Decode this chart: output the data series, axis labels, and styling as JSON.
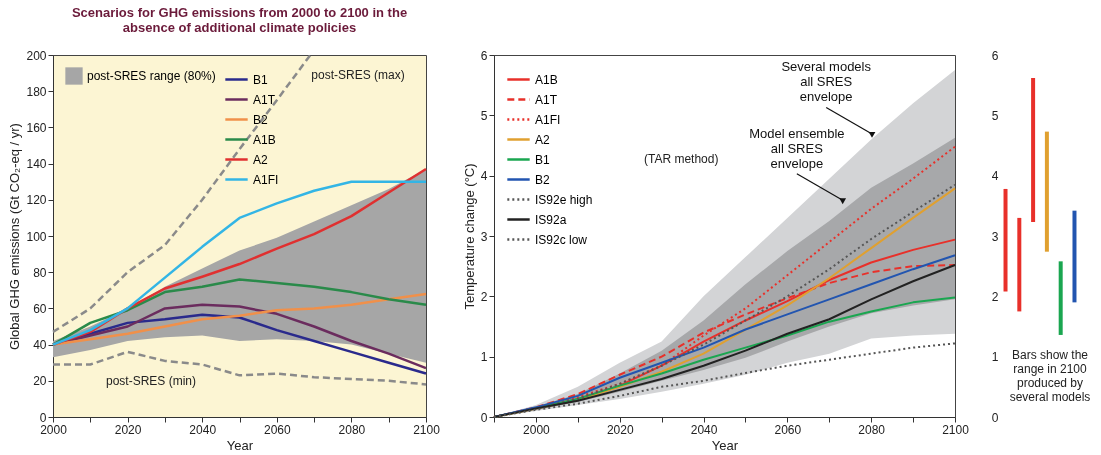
{
  "chart_data": [
    {
      "type": "line",
      "title": "Scenarios for GHG emissions from 2000 to 2100 in the absence of additional climate policies",
      "xlabel": "Year",
      "ylabel": "Global GHG emissions (Gt CO₂-eq / yr)",
      "legend": "top left",
      "x": [
        2000,
        2010,
        2020,
        2030,
        2040,
        2050,
        2060,
        2070,
        2080,
        2090,
        2100
      ],
      "xlim": [
        2000,
        2100
      ],
      "xticks": [
        2000,
        {
          "value": 2010,
          "label": null
        },
        2020,
        {
          "value": 2030,
          "label": null
        },
        2040,
        {
          "value": 2050,
          "label": null
        },
        2060,
        {
          "value": 2070,
          "label": null
        },
        2080,
        {
          "value": 2090,
          "label": null
        },
        2100
      ],
      "ylim": [
        0,
        200
      ],
      "yticks": [
        0,
        20,
        40,
        60,
        80,
        100,
        120,
        140,
        160,
        180,
        200
      ],
      "series": [
        {
          "name": "post-SRES range (80%)",
          "type": "area",
          "color": "#a6a6a6",
          "values": [
            null,
            null,
            null,
            null,
            null,
            null,
            null,
            null,
            null,
            null,
            null
          ],
          "lower": [
            33,
            37,
            42,
            44,
            45,
            42,
            43,
            42,
            40,
            35,
            30
          ],
          "upper": [
            42,
            50,
            60,
            72,
            82,
            92,
            99,
            108,
            117,
            126,
            137
          ]
        },
        {
          "name": "B1",
          "color": "#2a2a8c",
          "values": [
            40,
            46,
            52,
            54,
            56.5,
            55,
            48,
            42,
            36,
            30,
            24
          ]
        },
        {
          "name": "A1T",
          "color": "#6b2c5e",
          "values": [
            40,
            45,
            50,
            60,
            62,
            61,
            57,
            50,
            42,
            35,
            27
          ]
        },
        {
          "name": "B2",
          "color": "#f0904a",
          "values": [
            40,
            43,
            46,
            50,
            54,
            56,
            59,
            60,
            62,
            65,
            68
          ]
        },
        {
          "name": "A1B",
          "color": "#2a8a4a",
          "values": [
            40,
            52,
            59,
            69,
            72,
            76,
            74,
            72,
            69,
            65,
            62
          ]
        },
        {
          "name": "A2",
          "color": "#e03030",
          "values": [
            40,
            47,
            60,
            71,
            77.5,
            84.5,
            93,
            101,
            111,
            124,
            137
          ]
        },
        {
          "name": "A1FI",
          "color": "#33b5e5",
          "values": [
            40,
            48,
            60,
            77,
            94,
            110,
            118,
            125,
            130,
            130,
            130
          ]
        },
        {
          "color": "#8a8a8a",
          "line_style": "dashed",
          "x": [
            2000,
            2010,
            2020,
            2030,
            2040,
            2050,
            2060,
            2069
          ],
          "values": [
            47,
            60,
            80,
            95,
            120,
            148,
            175,
            200
          ]
        },
        {
          "color": "#8a8a8a",
          "line_style": "dashed",
          "values": [
            29,
            29,
            36,
            31,
            29,
            23,
            24,
            22,
            21,
            20,
            18
          ]
        }
      ],
      "annotations": [
        "post-SRES (max)",
        "post-SRES (min)"
      ]
    },
    {
      "type": "line",
      "xlabel": "Year",
      "ylabel": "Temperature change (°C)",
      "legend": "top left",
      "x": [
        1990,
        2000,
        2010,
        2020,
        2030,
        2040,
        2050,
        2060,
        2070,
        2080,
        2090,
        2100
      ],
      "xlim": [
        1990,
        2100
      ],
      "xticks": [
        {
          "value": 1990,
          "label": null
        },
        2000,
        {
          "value": 2010,
          "label": null
        },
        2020,
        {
          "value": 2030,
          "label": null
        },
        2040,
        {
          "value": 2050,
          "label": null
        },
        2060,
        {
          "value": 2070,
          "label": null
        },
        2080,
        {
          "value": 2090,
          "label": null
        },
        2100
      ],
      "ylim": [
        0,
        6
      ],
      "yticks": [
        0,
        1,
        2,
        3,
        4,
        5,
        6
      ],
      "series": [
        {
          "type": "area",
          "color": "#d3d4d6",
          "values": [
            null,
            null,
            null,
            null,
            null,
            null,
            null,
            null,
            null,
            null,
            null,
            null
          ],
          "lower": [
            0,
            0.1,
            0.2,
            0.3,
            0.42,
            0.55,
            0.7,
            0.9,
            1.05,
            1.3,
            1.35,
            1.38
          ],
          "upper": [
            0,
            0.2,
            0.5,
            0.9,
            1.25,
            2.0,
            2.65,
            3.3,
            3.95,
            4.6,
            5.2,
            5.75
          ]
        },
        {
          "type": "area",
          "color": "#a7a8aa",
          "values": [
            null,
            null,
            null,
            null,
            null,
            null,
            null,
            null,
            null,
            null,
            null,
            null
          ],
          "lower": [
            0,
            0.12,
            0.25,
            0.42,
            0.6,
            0.78,
            0.98,
            1.25,
            1.5,
            1.72,
            1.85,
            1.95
          ],
          "upper": [
            0,
            0.17,
            0.38,
            0.72,
            1.1,
            1.6,
            2.2,
            2.75,
            3.25,
            3.8,
            4.2,
            4.63
          ]
        },
        {
          "name": "A1B",
          "color": "#e8302a",
          "values": [
            0,
            0.15,
            0.3,
            0.52,
            0.85,
            1.25,
            1.6,
            1.92,
            2.27,
            2.56,
            2.77,
            2.94
          ]
        },
        {
          "name": "A1T",
          "color": "#e8302a",
          "line_style": "dashed",
          "values": [
            0,
            0.16,
            0.38,
            0.7,
            1.0,
            1.4,
            1.7,
            1.97,
            2.22,
            2.4,
            2.5,
            2.52
          ]
        },
        {
          "name": "A1FI",
          "color": "#e8302a",
          "line_style": "dotted",
          "values": [
            0,
            0.15,
            0.33,
            0.55,
            0.85,
            1.35,
            1.8,
            2.35,
            2.9,
            3.45,
            3.95,
            4.48
          ]
        },
        {
          "name": "A2",
          "color": "#e0a030",
          "values": [
            0,
            0.14,
            0.28,
            0.5,
            0.75,
            1.05,
            1.45,
            1.85,
            2.3,
            2.8,
            3.3,
            3.79
          ]
        },
        {
          "name": "B1",
          "color": "#1aa650",
          "values": [
            0,
            0.15,
            0.3,
            0.52,
            0.72,
            0.95,
            1.15,
            1.35,
            1.58,
            1.75,
            1.9,
            1.98
          ]
        },
        {
          "name": "B2",
          "color": "#2255b0",
          "values": [
            0,
            0.16,
            0.35,
            0.65,
            0.9,
            1.15,
            1.45,
            1.7,
            1.95,
            2.2,
            2.45,
            2.68
          ]
        },
        {
          "name": "IS92e high",
          "color": "#555555",
          "line_style": "dotted",
          "values": [
            0,
            0.14,
            0.3,
            0.55,
            0.85,
            1.2,
            1.6,
            2.0,
            2.45,
            2.95,
            3.4,
            3.85
          ]
        },
        {
          "name": "IS92a",
          "color": "#222222",
          "values": [
            0,
            0.14,
            0.27,
            0.45,
            0.63,
            0.85,
            1.1,
            1.38,
            1.62,
            1.95,
            2.25,
            2.52
          ]
        },
        {
          "name": "IS92c low",
          "color": "#555555",
          "line_style": "dotted",
          "values": [
            0,
            0.12,
            0.22,
            0.35,
            0.5,
            0.6,
            0.73,
            0.85,
            0.95,
            1.05,
            1.15,
            1.22
          ]
        }
      ],
      "annotations": [
        {
          "text": "Several models all SRES envelope",
          "x": 2080,
          "y": 4.7
        },
        {
          "text": "Model ensemble all SRES envelope",
          "x": 2073,
          "y": 3.6
        },
        "(TAR method)"
      ]
    },
    {
      "type": "bar",
      "categories": [
        null,
        null,
        null,
        null,
        null,
        null
      ],
      "base": [
        2.08,
        1.75,
        3.23,
        2.74,
        1.36,
        1.9
      ],
      "values": [
        1.7,
        1.55,
        2.39,
        1.99,
        1.22,
        1.52
      ],
      "colors": [
        "#e8302a",
        "#e8302a",
        "#e8302a",
        "#e0a030",
        "#1aa650",
        "#2255b0"
      ],
      "ylim": [
        0,
        6
      ],
      "yticks": [
        0,
        1,
        2,
        3,
        4,
        5,
        6
      ],
      "tick_labels": "y",
      "annotations": [
        "Bars show the range in 2100 produced by several models"
      ]
    }
  ]
}
